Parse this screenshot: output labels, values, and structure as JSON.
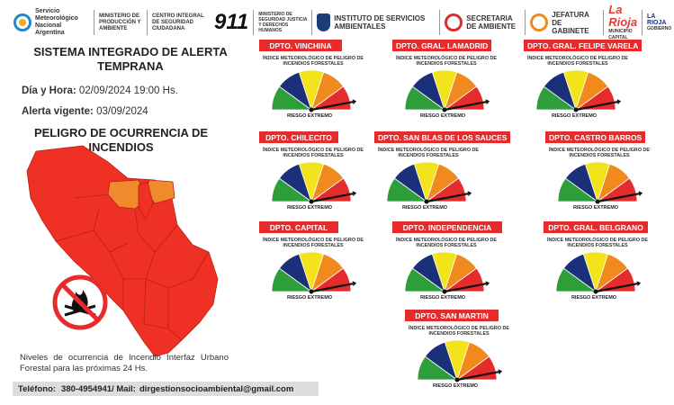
{
  "header_logos": [
    {
      "name": "smn",
      "text": "Servicio Meteorológico Nacional Argentina"
    },
    {
      "name": "produccion",
      "text": "MINISTERIO DE PRODUCCIÓN Y AMBIENTE"
    },
    {
      "name": "centro911",
      "text": "CENTRO INTEGRAL DE SEGURIDAD CIUDADANA",
      "number": "911"
    },
    {
      "name": "seguridad",
      "text": "MINISTERIO DE SEGURIDAD JUSTICIA Y DERECHOS HUMANOS"
    },
    {
      "name": "ifs",
      "text": "INSTITUTO DE SERVICIOS AMBIENTALES"
    },
    {
      "name": "secretaria",
      "text": "SECRETARIA DE AMBIENTE"
    },
    {
      "name": "jefatura",
      "text": "JEFATURA DE GABINETE"
    },
    {
      "name": "rioja-capital",
      "text": "La Rioja",
      "sub": "MUNICIPIO CAPITAL"
    },
    {
      "name": "rioja-gobierno",
      "text": "LA RIOJA",
      "sub": "GOBIERNO"
    }
  ],
  "title": "SISTEMA INTEGRADO DE ALERTA TEMPRANA",
  "fecha": {
    "label": "Día y Hora:",
    "value": "02/09/2024  19:00 Hs."
  },
  "alerta": {
    "label": "Alerta vigente:",
    "value": "03/09/2024"
  },
  "peligro_title": "PELIGRO DE OCURRENCIA DE INCENDIOS",
  "niveles_text": "Niveles de ocurrencia de Incendio Interfaz Urbano Forestal para las próximas 24 Hs.",
  "contact": {
    "tel_label": "Teléfono:",
    "tel": "380-4954941",
    "mail_label": "/ Mail:",
    "mail": "dirgestionsocioambiental@gmail.com"
  },
  "gauge_subtitle": "ÍNDICE METEOROLÓGICO DE PELIGRO DE INCENDIOS FORESTALES",
  "gauge_colors": [
    "#2e9e3a",
    "#1b2f7a",
    "#f2e31b",
    "#f08a1c",
    "#e52b2b"
  ],
  "departments": [
    {
      "name": "DPTO. VINCHINA",
      "risk": "RIESGO EXTREMO",
      "level": 5
    },
    {
      "name": "DPTO. GRAL. LAMADRID",
      "risk": "RIESGO EXTREMO",
      "level": 5
    },
    {
      "name": "DPTO. GRAL. FELIPE VARELA",
      "risk": "RIESGO EXTREMO",
      "level": 5
    },
    {
      "name": "DPTO. CHILECITO",
      "risk": "RIESGO EXTREMO",
      "level": 5
    },
    {
      "name": "DPTO. SAN BLAS DE LOS SAUCES",
      "risk": "RIESGO EXTREMO",
      "level": 5
    },
    {
      "name": "DPTO. CASTRO BARROS",
      "risk": "RIESGO EXTREMO",
      "level": 5
    },
    {
      "name": "DPTO. CAPITAL",
      "risk": "RIESGO EXTREMO",
      "level": 5
    },
    {
      "name": "DPTO. INDEPENDENCIA",
      "risk": "RIESGO EXTREMO",
      "level": 5
    },
    {
      "name": "DPTO. GRAL. BELGRANO",
      "risk": "RIESGO EXTREMO",
      "level": 5
    },
    {
      "name": "DPTO. SAN MARTIN",
      "risk": "RIESGO EXTREMO",
      "level": 5
    }
  ],
  "map_colors": {
    "extremo": "#ee3124",
    "alto": "#f08a2c"
  }
}
